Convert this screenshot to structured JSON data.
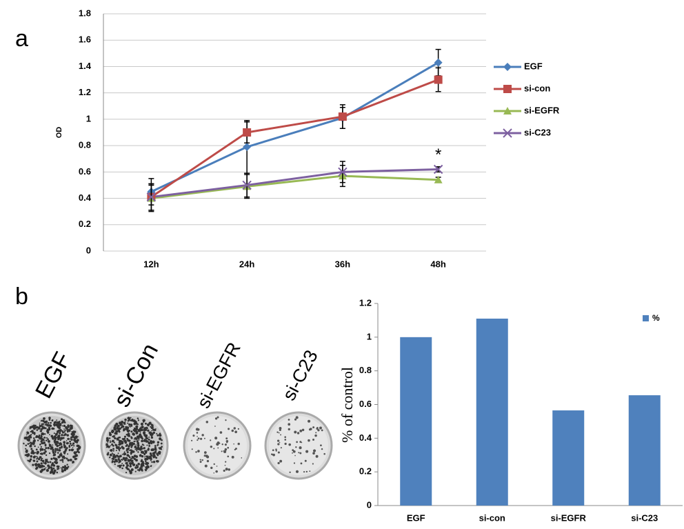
{
  "panel_labels": [
    "a",
    "b"
  ],
  "colony_images": {
    "labels": [
      "EGF",
      "si-Con",
      "si-EGFR",
      "si-C23"
    ]
  },
  "chart_data": [
    {
      "type": "line",
      "y_label": "OD",
      "categories": [
        "12h",
        "24h",
        "36h",
        "48h"
      ],
      "ylim": [
        0,
        1.8
      ],
      "yticks": [
        0,
        0.2,
        0.4,
        0.6,
        0.8,
        1,
        1.2,
        1.4,
        1.6,
        1.8
      ],
      "grid": true,
      "legend": "right",
      "series": [
        {
          "name": "EGF",
          "color": "#4a7ebb",
          "marker": "diamond",
          "values": [
            0.45,
            0.79,
            1.01,
            1.43
          ],
          "errors": [
            0.1,
            0.2,
            0.08,
            0.1
          ]
        },
        {
          "name": "si-con",
          "color": "#be4b48",
          "marker": "square",
          "values": [
            0.41,
            0.9,
            1.02,
            1.3
          ],
          "errors": [
            0.1,
            0.08,
            0.09,
            0.09
          ]
        },
        {
          "name": "si-EGFR",
          "color": "#98b954",
          "marker": "triangle",
          "values": [
            0.4,
            0.49,
            0.57,
            0.54
          ],
          "errors": [
            0.1,
            0.09,
            0.08,
            0.02
          ]
        },
        {
          "name": "si-C23",
          "color": "#7d60a0",
          "marker": "x",
          "values": [
            0.41,
            0.5,
            0.6,
            0.62
          ],
          "errors": [
            0.1,
            0.09,
            0.08,
            0.02
          ]
        }
      ],
      "annotations": [
        "*"
      ]
    },
    {
      "type": "bar",
      "y_label": "% of control",
      "categories": [
        "EGF",
        "si-con",
        "si-EGFR",
        "si-C23"
      ],
      "ylim": [
        0,
        1.2
      ],
      "yticks": [
        0,
        0.2,
        0.4,
        0.6,
        0.8,
        1,
        1.2
      ],
      "grid": false,
      "legend": "upper right",
      "series": [
        {
          "name": "%",
          "color": "#4f81bd",
          "values": [
            1,
            1.11,
            0.565,
            0.655
          ]
        }
      ]
    }
  ]
}
